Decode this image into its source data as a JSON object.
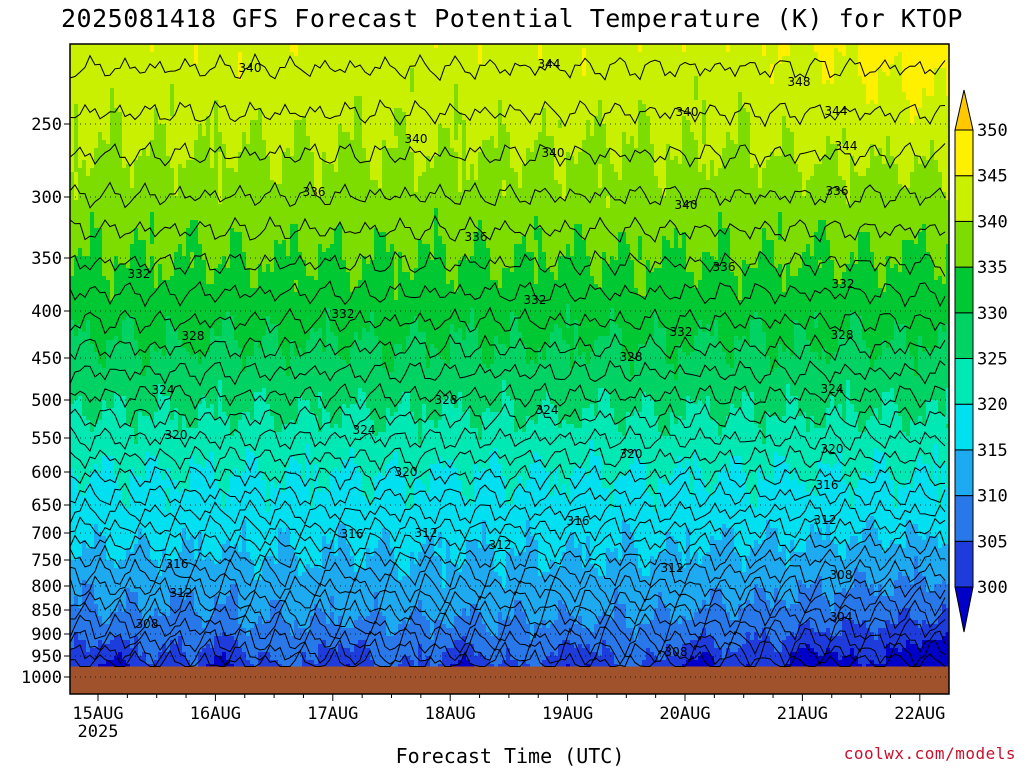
{
  "chart_data": {
    "type": "heatmap",
    "title": "2025081418 GFS Forecast Potential Temperature (K) for KTOP",
    "xlabel": "Forecast Time (UTC)",
    "ylabel": "",
    "x_ticks": [
      "15AUG",
      "16AUG",
      "17AUG",
      "18AUG",
      "19AUG",
      "20AUG",
      "21AUG",
      "22AUG"
    ],
    "x_tick_sublabel": "2025",
    "x_range": [
      "15AUG 00Z",
      "22AUG 12Z"
    ],
    "y_ticks": [
      250,
      300,
      350,
      400,
      450,
      500,
      550,
      600,
      650,
      700,
      750,
      800,
      850,
      900,
      950,
      1000
    ],
    "y_range_hPa": [
      200,
      1000
    ],
    "y_axis_inverted": true,
    "surface_pressure_hPa": 975,
    "colorbar": {
      "levels": [
        300,
        305,
        310,
        315,
        320,
        325,
        330,
        335,
        340,
        345,
        350
      ],
      "colors": [
        "#0000c8",
        "#1e3cdc",
        "#2878ea",
        "#1eaaf0",
        "#00e0f0",
        "#00e8b4",
        "#00d264",
        "#00c832",
        "#7ddc00",
        "#c8f000",
        "#fff000",
        "#ffc800"
      ],
      "extend": "both"
    },
    "contour_interval_K": 2,
    "contour_labels": [
      "340",
      "344",
      "348",
      "344",
      "340",
      "340",
      "340",
      "344",
      "340",
      "336",
      "336",
      "336",
      "336",
      "332",
      "332",
      "332",
      "332",
      "332",
      "328",
      "328",
      "328",
      "328",
      "324",
      "324",
      "324",
      "324",
      "320",
      "320",
      "320",
      "320",
      "316",
      "316",
      "316",
      "316",
      "312",
      "312",
      "312",
      "312",
      "312",
      "308",
      "308",
      "308",
      "304"
    ],
    "surface_color": "#a0522d",
    "grid": "dotted"
  },
  "credit": "coolwx.com/models"
}
